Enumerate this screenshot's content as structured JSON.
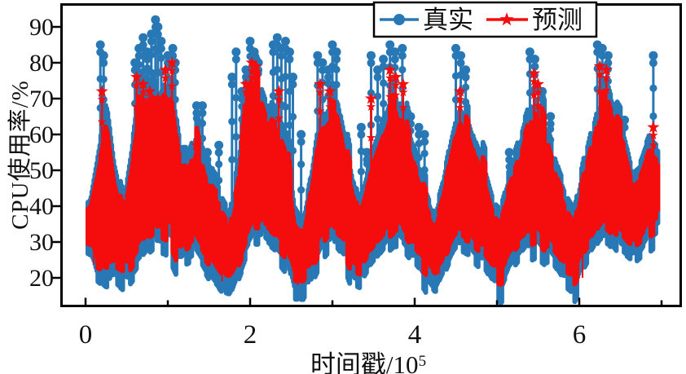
{
  "chart_data": {
    "type": "line",
    "title": "",
    "xlabel": "时间戳/10⁵",
    "xlabel_display": {
      "base": "时间戳/10",
      "exp": "5"
    },
    "ylabel": "CPU使用率/%",
    "xlim": [
      -0.31,
      7.25
    ],
    "ylim": [
      11.8,
      96.6
    ],
    "grid": false,
    "xticks_major": {
      "values": [
        0,
        2,
        4,
        6
      ],
      "labels": [
        "0",
        "2",
        "4",
        "6"
      ]
    },
    "xticks_minor": [
      1,
      3,
      5,
      7
    ],
    "yticks": {
      "values": [
        20,
        30,
        40,
        50,
        60,
        70,
        80,
        90
      ],
      "labels": [
        "20",
        "30",
        "40",
        "50",
        "60",
        "70",
        "80",
        "90"
      ]
    },
    "legend": {
      "position": "top-center",
      "border_color": "#000000",
      "background": "#ffffff"
    },
    "style": {
      "frame_color": "#000000",
      "background": "#ffffff",
      "text_color": "#111111"
    },
    "envelope_x0": 0.05,
    "envelope_dx": 0.1,
    "series": [
      {
        "name": "真实",
        "color": "#2878b5",
        "marker": "circle",
        "envelope_low": [
          30,
          22,
          20,
          20,
          18,
          22,
          25,
          28,
          30,
          32,
          30,
          25,
          26,
          28,
          24,
          20,
          17,
          16,
          22,
          28,
          32,
          32,
          30,
          28,
          25,
          15,
          15,
          22,
          27,
          30,
          30,
          27,
          21,
          20,
          24,
          27,
          30,
          32,
          30,
          27,
          24,
          20,
          17,
          22,
          27,
          30,
          29,
          26,
          24,
          20,
          18,
          23,
          26,
          29,
          31,
          28,
          26,
          23,
          19,
          17,
          24,
          28,
          32,
          33,
          30,
          28,
          26,
          28,
          32,
          34
        ],
        "envelope_high": [
          42,
          55,
          68,
          50,
          40,
          55,
          72,
          75,
          70,
          75,
          72,
          55,
          55,
          62,
          52,
          45,
          42,
          38,
          50,
          72,
          78,
          72,
          65,
          62,
          58,
          40,
          36,
          48,
          64,
          68,
          70,
          58,
          46,
          44,
          52,
          58,
          65,
          72,
          68,
          58,
          50,
          44,
          38,
          46,
          58,
          68,
          64,
          56,
          50,
          42,
          40,
          48,
          55,
          63,
          70,
          64,
          56,
          48,
          42,
          38,
          50,
          60,
          70,
          72,
          64,
          60,
          50,
          52,
          58,
          56
        ],
        "spikes": [
          [
            0.18,
            85
          ],
          [
            0.22,
            82
          ],
          [
            0.6,
            80
          ],
          [
            0.65,
            84
          ],
          [
            0.7,
            87
          ],
          [
            0.75,
            83
          ],
          [
            0.8,
            88
          ],
          [
            0.85,
            92
          ],
          [
            0.88,
            90
          ],
          [
            0.92,
            86
          ],
          [
            1.0,
            82
          ],
          [
            1.06,
            84
          ],
          [
            1.09,
            80
          ],
          [
            1.35,
            68
          ],
          [
            1.42,
            68
          ],
          [
            1.48,
            55
          ],
          [
            1.62,
            57
          ],
          [
            1.78,
            76
          ],
          [
            1.83,
            83
          ],
          [
            1.9,
            72
          ],
          [
            1.95,
            78
          ],
          [
            2.0,
            86
          ],
          [
            2.05,
            83
          ],
          [
            2.1,
            80
          ],
          [
            2.28,
            85
          ],
          [
            2.33,
            87
          ],
          [
            2.38,
            84
          ],
          [
            2.43,
            86
          ],
          [
            2.48,
            83
          ],
          [
            2.52,
            76
          ],
          [
            2.62,
            60
          ],
          [
            2.82,
            82
          ],
          [
            2.88,
            80
          ],
          [
            2.95,
            78
          ],
          [
            3.0,
            85
          ],
          [
            3.05,
            83
          ],
          [
            3.35,
            62
          ],
          [
            3.42,
            55
          ],
          [
            3.47,
            82
          ],
          [
            3.55,
            78
          ],
          [
            3.62,
            81
          ],
          [
            3.7,
            85
          ],
          [
            3.76,
            83
          ],
          [
            3.85,
            84
          ],
          [
            3.95,
            65
          ],
          [
            4.05,
            62
          ],
          [
            4.12,
            60
          ],
          [
            4.5,
            84
          ],
          [
            4.56,
            82
          ],
          [
            4.62,
            78
          ],
          [
            5.15,
            55
          ],
          [
            5.22,
            50
          ],
          [
            5.4,
            83
          ],
          [
            5.46,
            81
          ],
          [
            5.55,
            72
          ],
          [
            5.65,
            65
          ],
          [
            6.22,
            85
          ],
          [
            6.28,
            84
          ],
          [
            6.35,
            82
          ],
          [
            6.45,
            68
          ],
          [
            6.55,
            64
          ],
          [
            6.9,
            82
          ]
        ]
      },
      {
        "name": "预测",
        "color": "#f50d0d",
        "marker": "star",
        "envelope_low": [
          33,
          26,
          25,
          24,
          23,
          26,
          30,
          32,
          34,
          36,
          34,
          28,
          30,
          32,
          28,
          25,
          22,
          21,
          26,
          32,
          36,
          36,
          34,
          32,
          29,
          20,
          20,
          26,
          31,
          34,
          34,
          31,
          25,
          24,
          28,
          31,
          34,
          36,
          34,
          31,
          28,
          25,
          22,
          26,
          31,
          34,
          33,
          30,
          28,
          24,
          23,
          27,
          30,
          33,
          35,
          32,
          30,
          27,
          23,
          22,
          28,
          32,
          36,
          37,
          34,
          32,
          30,
          32,
          36,
          38
        ],
        "envelope_high": [
          40,
          50,
          62,
          45,
          36,
          50,
          65,
          68,
          65,
          72,
          68,
          50,
          50,
          57,
          47,
          40,
          38,
          34,
          45,
          68,
          75,
          68,
          60,
          58,
          52,
          35,
          32,
          44,
          60,
          64,
          66,
          53,
          42,
          40,
          48,
          54,
          60,
          68,
          63,
          53,
          46,
          40,
          34,
          42,
          54,
          64,
          60,
          52,
          46,
          38,
          36,
          44,
          50,
          58,
          66,
          60,
          52,
          44,
          38,
          34,
          46,
          56,
          66,
          68,
          60,
          56,
          46,
          48,
          54,
          52
        ],
        "spikes": [
          [
            0.2,
            72
          ],
          [
            0.62,
            76
          ],
          [
            0.7,
            74
          ],
          [
            0.78,
            72
          ],
          [
            0.88,
            70
          ],
          [
            0.97,
            78
          ],
          [
            1.05,
            80
          ],
          [
            1.35,
            57
          ],
          [
            1.95,
            74
          ],
          [
            2.02,
            80
          ],
          [
            2.07,
            79
          ],
          [
            2.35,
            72
          ],
          [
            2.85,
            74
          ],
          [
            2.97,
            72
          ],
          [
            3.47,
            70
          ],
          [
            3.7,
            78
          ],
          [
            3.77,
            76
          ],
          [
            3.86,
            74
          ],
          [
            4.55,
            72
          ],
          [
            5.45,
            77
          ],
          [
            5.5,
            74
          ],
          [
            6.25,
            79
          ],
          [
            6.33,
            78
          ],
          [
            6.9,
            62
          ]
        ],
        "drops": [
          [
            0.1,
            24
          ],
          [
            1.66,
            19
          ],
          [
            2.58,
            18
          ],
          [
            4.3,
            21
          ],
          [
            5.02,
            21
          ],
          [
            6.04,
            20
          ],
          [
            6.88,
            33
          ]
        ]
      }
    ]
  }
}
